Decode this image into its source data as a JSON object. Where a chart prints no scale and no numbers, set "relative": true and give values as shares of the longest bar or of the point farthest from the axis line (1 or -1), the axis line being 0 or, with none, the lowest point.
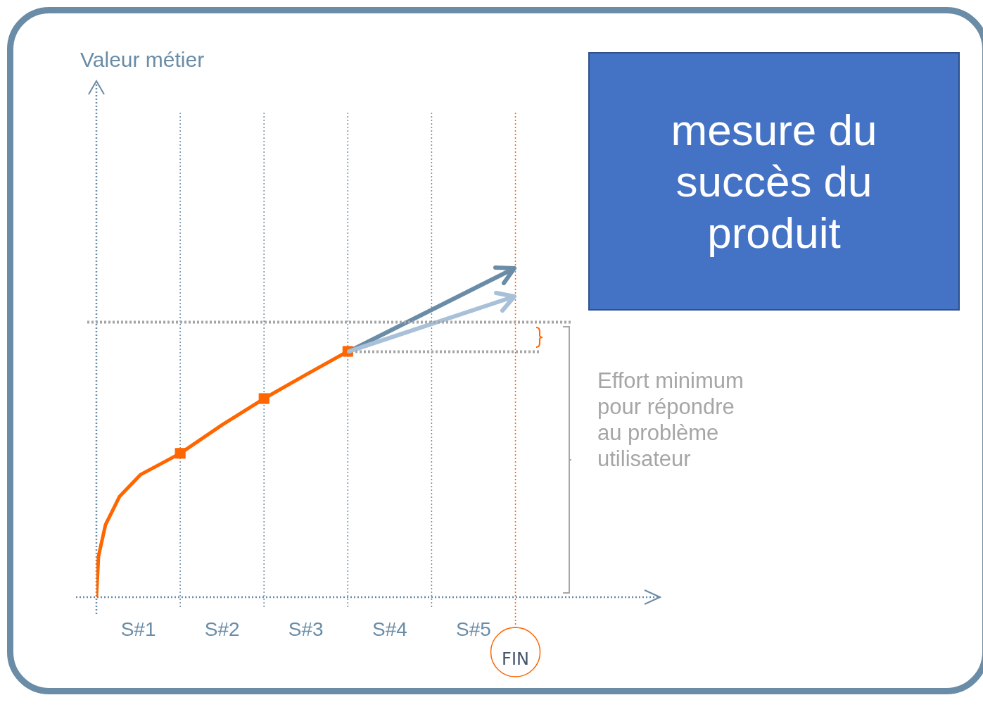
{
  "chart_data": {
    "type": "line",
    "relative": true,
    "xlim": [
      0,
      6.7
    ],
    "xticks": [
      {
        "value": 0.5,
        "label": "S#1"
      },
      {
        "value": 1.5,
        "label": "S#2"
      },
      {
        "value": 2.5,
        "label": "S#3"
      },
      {
        "value": 3.5,
        "label": "S#4"
      },
      {
        "value": 4.5,
        "label": "S#5"
      }
    ],
    "series": [
      {
        "color": "#ff6600",
        "marker": "none",
        "x": [
          0,
          0.025,
          0.109,
          0.277,
          0.529,
          1,
          1.5,
          2,
          2.5,
          3
        ],
        "values": [
          0,
          0.166,
          0.295,
          0.41,
          0.499,
          0.585,
          0.701,
          0.808,
          0.905,
          1
        ]
      },
      {
        "type": "scatter",
        "color": "#ff6600",
        "marker": "square",
        "x": [
          1,
          2,
          3
        ],
        "values": [
          0.585,
          0.808,
          1
        ]
      }
    ],
    "ref_lines": [
      {
        "axis": "x",
        "value": 1,
        "color": "#6a8ca6",
        "line_style": "dotted"
      },
      {
        "axis": "x",
        "value": 2,
        "color": "#6a8ca6",
        "line_style": "dotted"
      },
      {
        "axis": "x",
        "value": 3,
        "color": "#6a8ca6",
        "line_style": "dotted"
      },
      {
        "axis": "x",
        "value": 4,
        "color": "#6a8ca6",
        "line_style": "dotted"
      },
      {
        "axis": "x",
        "value": 5,
        "color": "#ff6600",
        "line_style": "dotted",
        "label": "FIN"
      }
    ],
    "annotations": [
      "mesure du succès du produit",
      "Valeur métier",
      "Effort minimum pour répondre au problème utilisateur"
    ],
    "legend": false,
    "grid": false
  }
}
